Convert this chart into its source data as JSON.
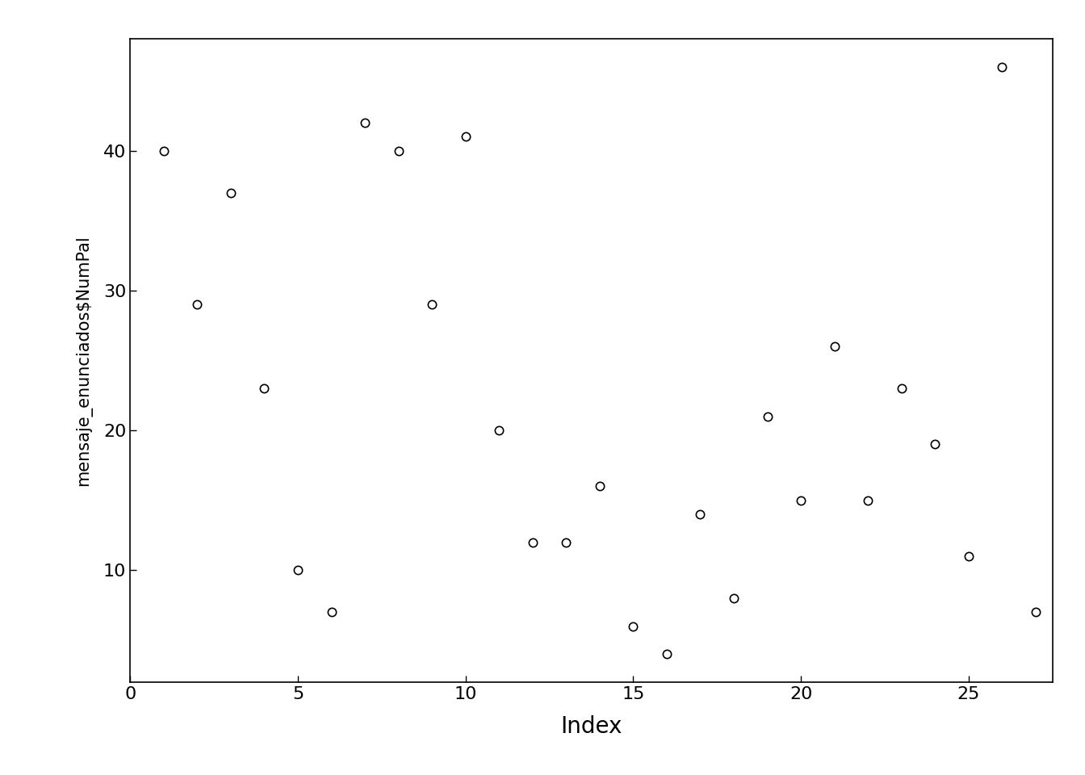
{
  "x": [
    1,
    2,
    3,
    4,
    5,
    6,
    7,
    8,
    9,
    10,
    11,
    12,
    13,
    14,
    15,
    16,
    17,
    18,
    19,
    20,
    21,
    22,
    23,
    24,
    25,
    26,
    27
  ],
  "y": [
    40,
    29,
    37,
    23,
    10,
    7,
    42,
    40,
    29,
    41,
    20,
    12,
    12,
    16,
    6,
    4,
    14,
    8,
    21,
    15,
    26,
    15,
    23,
    19,
    11,
    46,
    7
  ],
  "xlabel": "Index",
  "ylabel": "mensaje_enunciados$NumPal",
  "xlim": [
    0,
    27.5
  ],
  "ylim": [
    2,
    48
  ],
  "xticks": [
    0,
    5,
    10,
    15,
    20,
    25
  ],
  "yticks": [
    10,
    20,
    30,
    40
  ],
  "marker_size": 55,
  "marker_color": "white",
  "marker_edge_color": "black",
  "marker_edge_width": 1.2,
  "background_color": "#ffffff",
  "xlabel_fontsize": 20,
  "ylabel_fontsize": 15,
  "tick_fontsize": 16
}
